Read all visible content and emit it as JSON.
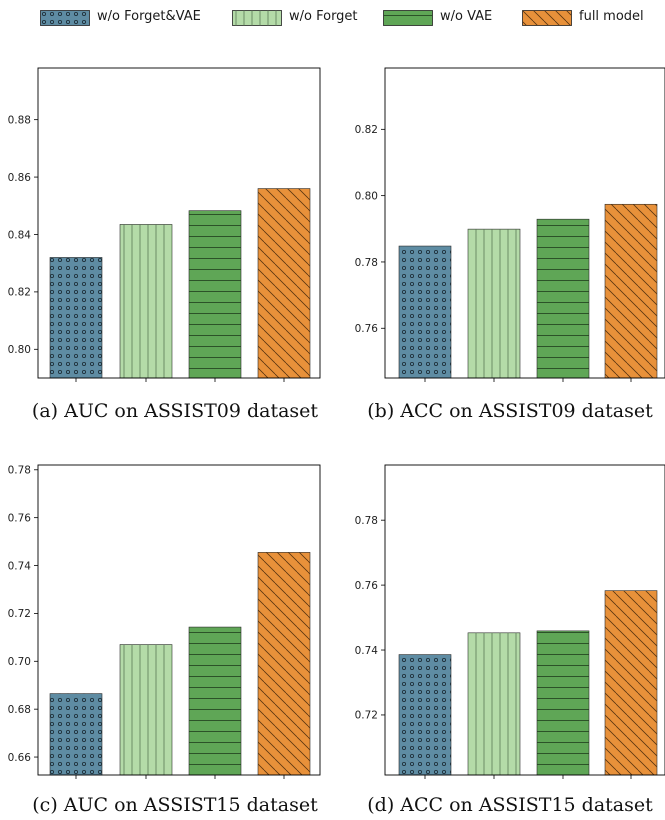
{
  "legend": {
    "items": [
      {
        "label": "w/o Forget&VAE",
        "color": "#5e8ca3",
        "hatch": "circles"
      },
      {
        "label": "w/o Forget",
        "color": "#b4dba8",
        "hatch": "vertical"
      },
      {
        "label": "w/o VAE",
        "color": "#5fa656",
        "hatch": "horizontal"
      },
      {
        "label": "full model",
        "color": "#e8913a",
        "hatch": "diagonal"
      }
    ]
  },
  "chart_data": [
    {
      "type": "bar",
      "title": "(a) AUC on ASSIST09 dataset",
      "xlabel": "",
      "ylabel": "",
      "categories": [
        "w/o Forget&VAE",
        "w/o Forget",
        "w/o VAE",
        "full model"
      ],
      "values": [
        0.832,
        0.8435,
        0.8483,
        0.856
      ],
      "ylim": [
        0.79,
        0.898
      ],
      "yticks": [
        "0.80",
        "0.82",
        "0.84",
        "0.86",
        "0.88"
      ],
      "grid": false
    },
    {
      "type": "bar",
      "title": "(b) ACC on ASSIST09 dataset",
      "xlabel": "",
      "ylabel": "",
      "categories": [
        "w/o Forget&VAE",
        "w/o Forget",
        "w/o VAE",
        "full model"
      ],
      "values": [
        0.7848,
        0.7899,
        0.7929,
        0.7974
      ],
      "ylim": [
        0.745,
        0.8385
      ],
      "yticks": [
        "0.76",
        "0.78",
        "0.80",
        "0.82"
      ],
      "grid": false
    },
    {
      "type": "bar",
      "title": "(c) AUC on ASSIST15 dataset",
      "xlabel": "",
      "ylabel": "",
      "categories": [
        "w/o Forget&VAE",
        "w/o Forget",
        "w/o VAE",
        "full model"
      ],
      "values": [
        0.6865,
        0.707,
        0.7143,
        0.7455
      ],
      "ylim": [
        0.6525,
        0.782
      ],
      "yticks": [
        "0.66",
        "0.68",
        "0.70",
        "0.72",
        "0.74",
        "0.76",
        "0.78"
      ],
      "grid": false
    },
    {
      "type": "bar",
      "title": "(d) ACC on ASSIST15 dataset",
      "xlabel": "",
      "ylabel": "",
      "categories": [
        "w/o Forget&VAE",
        "w/o Forget",
        "w/o VAE",
        "full model"
      ],
      "values": [
        0.7386,
        0.7453,
        0.7459,
        0.7583
      ],
      "ylim": [
        0.7015,
        0.797
      ],
      "yticks": [
        "0.72",
        "0.74",
        "0.76",
        "0.78"
      ],
      "grid": false
    }
  ]
}
